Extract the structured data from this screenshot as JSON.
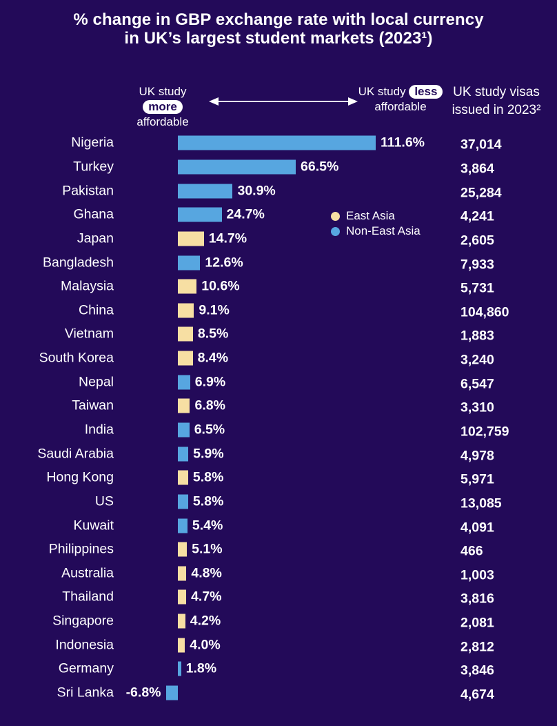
{
  "colors": {
    "background": "#230a59",
    "east_asia": "#f7dfa3",
    "non_east_asia": "#57a6e0",
    "text": "#ffffff"
  },
  "title": {
    "line1": "% change in GBP exchange rate with local currency",
    "line2": "in UK’s largest student markets (2023¹)"
  },
  "affordability_scale": {
    "left_prefix": "UK study",
    "left_pill": "more",
    "left_suffix": "affordable",
    "right_prefix": "UK study",
    "right_pill": "less",
    "right_suffix": "affordable"
  },
  "visas_header": {
    "line1": "UK study visas",
    "line2": "issued in 2023²"
  },
  "legend": {
    "items": [
      {
        "label": "East Asia",
        "color_key": "east_asia"
      },
      {
        "label": "Non-East Asia",
        "color_key": "non_east_asia"
      }
    ]
  },
  "chart_data": {
    "type": "bar",
    "orientation": "horizontal",
    "title": "% change in GBP exchange rate with local currency in UK’s largest student markets (2023¹)",
    "unit": "%",
    "xlim": [
      -6.8,
      111.6
    ],
    "grid": false,
    "legend_position": "middle-right",
    "legend_entries": [
      "East Asia",
      "Non-East Asia"
    ],
    "categories": [
      "Nigeria",
      "Turkey",
      "Pakistan",
      "Ghana",
      "Japan",
      "Bangladesh",
      "Malaysia",
      "China",
      "Vietnam",
      "South Korea",
      "Nepal",
      "Taiwan",
      "India",
      "Saudi Arabia",
      "Hong Kong",
      "US",
      "Kuwait",
      "Philippines",
      "Australia",
      "Thailand",
      "Singapore",
      "Indonesia",
      "Germany",
      "Sri Lanka"
    ],
    "point_regions": [
      "non_east_asia",
      "non_east_asia",
      "non_east_asia",
      "non_east_asia",
      "east_asia",
      "non_east_asia",
      "east_asia",
      "east_asia",
      "east_asia",
      "east_asia",
      "non_east_asia",
      "east_asia",
      "non_east_asia",
      "non_east_asia",
      "east_asia",
      "non_east_asia",
      "non_east_asia",
      "east_asia",
      "east_asia",
      "east_asia",
      "east_asia",
      "east_asia",
      "non_east_asia",
      "non_east_asia"
    ],
    "series": [
      {
        "name": "% change in GBP exchange rate with local currency (2023)",
        "unit": "%",
        "values": [
          111.6,
          66.5,
          30.9,
          24.7,
          14.7,
          12.6,
          10.6,
          9.1,
          8.5,
          8.4,
          6.9,
          6.8,
          6.5,
          5.9,
          5.8,
          5.8,
          5.4,
          5.1,
          4.8,
          4.7,
          4.2,
          4.0,
          1.8,
          -6.8
        ],
        "labels": [
          "111.6%",
          "66.5%",
          "30.9%",
          "24.7%",
          "14.7%",
          "12.6%",
          "10.6%",
          "9.1%",
          "8.5%",
          "8.4%",
          "6.9%",
          "6.8%",
          "6.5%",
          "5.9%",
          "5.8%",
          "5.8%",
          "5.4%",
          "5.1%",
          "4.8%",
          "4.7%",
          "4.2%",
          "4.0%",
          "1.8%",
          "-6.8%"
        ]
      },
      {
        "name": "UK study visas issued in 2023²",
        "values": [
          37014,
          3864,
          25284,
          4241,
          2605,
          7933,
          5731,
          104860,
          1883,
          3240,
          6547,
          3310,
          102759,
          4978,
          5971,
          13085,
          4091,
          466,
          1003,
          3816,
          2081,
          2812,
          3846,
          4674
        ],
        "labels": [
          "37,014",
          "3,864",
          "25,284",
          "4,241",
          "2,605",
          "7,933",
          "5,731",
          "104,860",
          "1,883",
          "3,240",
          "6,547",
          "3,310",
          "102,759",
          "4,978",
          "5,971",
          "13,085",
          "4,091",
          "466",
          "1,003",
          "3,816",
          "2,081",
          "2,812",
          "3,846",
          "4,674"
        ]
      }
    ]
  }
}
